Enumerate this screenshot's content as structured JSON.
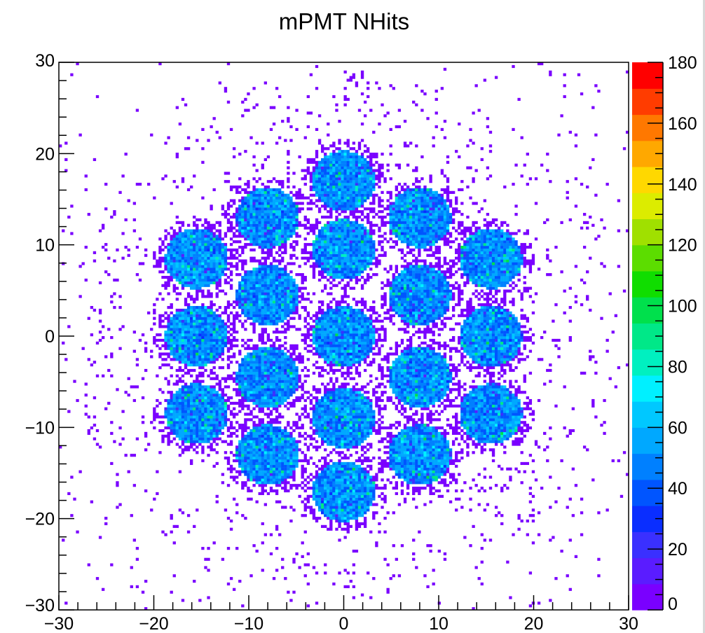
{
  "chart_data": {
    "type": "heatmap",
    "title": "mPMT NHits",
    "xlabel": "",
    "ylabel": "",
    "xlim": [
      -30,
      30
    ],
    "ylim": [
      -30,
      30
    ],
    "x_ticks": [
      -30,
      -20,
      -10,
      0,
      10,
      20,
      30
    ],
    "y_ticks": [
      -30,
      -20,
      -10,
      0,
      10,
      20,
      30
    ],
    "x_tick_labels": [
      "−30",
      "−20",
      "−10",
      "0",
      "10",
      "20",
      "30"
    ],
    "y_tick_labels": [
      "−30",
      "−20",
      "−10",
      "0",
      "10",
      "20",
      "30"
    ],
    "colorbar": {
      "range": [
        0,
        180
      ],
      "ticks": [
        0,
        20,
        40,
        60,
        80,
        100,
        120,
        140,
        160,
        180
      ],
      "tick_labels": [
        "0",
        "20",
        "40",
        "60",
        "80",
        "100",
        "120",
        "140",
        "160",
        "180"
      ],
      "colors": [
        "#7a00ff",
        "#5a1cff",
        "#3a30ff",
        "#0a2eff",
        "#0055ff",
        "#0080ff",
        "#00a8ff",
        "#00c8ff",
        "#00f0ff",
        "#00f0c0",
        "#00e888",
        "#00e04c",
        "#10dd00",
        "#5cdd00",
        "#a0e000",
        "#dcec00",
        "#ffd800",
        "#ffa800",
        "#ff7800",
        "#ff3c00",
        "#ff0000"
      ]
    },
    "pmt_centers": [
      [
        0,
        17
      ],
      [
        -8,
        13
      ],
      [
        8,
        13
      ],
      [
        -15.5,
        8.5
      ],
      [
        0,
        9.5
      ],
      [
        15.5,
        8.5
      ],
      [
        -8,
        4.5
      ],
      [
        8,
        4.5
      ],
      [
        -15.5,
        0
      ],
      [
        0,
        0
      ],
      [
        15.5,
        0
      ],
      [
        -8,
        -4.5
      ],
      [
        8,
        -4.5
      ],
      [
        -15.5,
        -8.5
      ],
      [
        0,
        -9
      ],
      [
        15.5,
        -8.5
      ],
      [
        -8,
        -13
      ],
      [
        8,
        -13
      ],
      [
        0,
        -17
      ]
    ],
    "pmt_radius": 3.3,
    "pmt_hits_range": [
      35,
      65
    ],
    "background_hits": 1
  }
}
